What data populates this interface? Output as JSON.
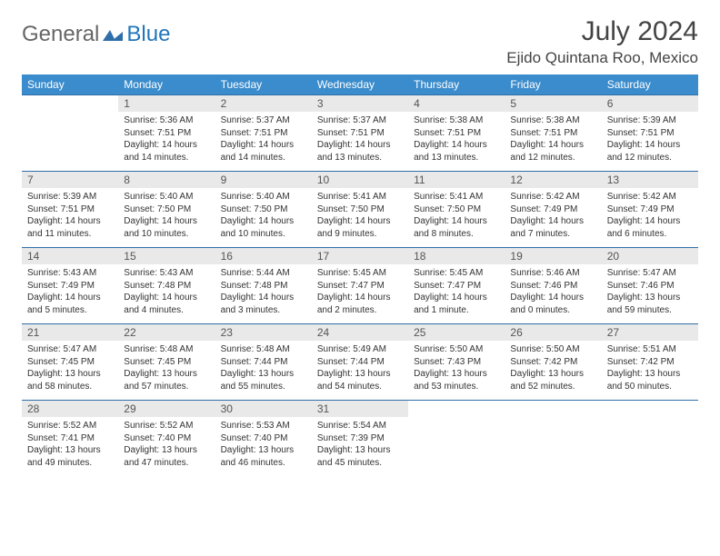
{
  "brand": {
    "part1": "General",
    "part2": "Blue"
  },
  "title": "July 2024",
  "location": "Ejido Quintana Roo, Mexico",
  "colors": {
    "header_bg": "#3b8ccc",
    "header_text": "#ffffff",
    "daynum_bg": "#e9e9e9",
    "rule": "#2f6fa8",
    "text": "#333333"
  },
  "weekdays": [
    "Sunday",
    "Monday",
    "Tuesday",
    "Wednesday",
    "Thursday",
    "Friday",
    "Saturday"
  ],
  "weeks": [
    [
      null,
      {
        "n": "1",
        "sr": "Sunrise: 5:36 AM",
        "ss": "Sunset: 7:51 PM",
        "dl": "Daylight: 14 hours and 14 minutes."
      },
      {
        "n": "2",
        "sr": "Sunrise: 5:37 AM",
        "ss": "Sunset: 7:51 PM",
        "dl": "Daylight: 14 hours and 14 minutes."
      },
      {
        "n": "3",
        "sr": "Sunrise: 5:37 AM",
        "ss": "Sunset: 7:51 PM",
        "dl": "Daylight: 14 hours and 13 minutes."
      },
      {
        "n": "4",
        "sr": "Sunrise: 5:38 AM",
        "ss": "Sunset: 7:51 PM",
        "dl": "Daylight: 14 hours and 13 minutes."
      },
      {
        "n": "5",
        "sr": "Sunrise: 5:38 AM",
        "ss": "Sunset: 7:51 PM",
        "dl": "Daylight: 14 hours and 12 minutes."
      },
      {
        "n": "6",
        "sr": "Sunrise: 5:39 AM",
        "ss": "Sunset: 7:51 PM",
        "dl": "Daylight: 14 hours and 12 minutes."
      }
    ],
    [
      {
        "n": "7",
        "sr": "Sunrise: 5:39 AM",
        "ss": "Sunset: 7:51 PM",
        "dl": "Daylight: 14 hours and 11 minutes."
      },
      {
        "n": "8",
        "sr": "Sunrise: 5:40 AM",
        "ss": "Sunset: 7:50 PM",
        "dl": "Daylight: 14 hours and 10 minutes."
      },
      {
        "n": "9",
        "sr": "Sunrise: 5:40 AM",
        "ss": "Sunset: 7:50 PM",
        "dl": "Daylight: 14 hours and 10 minutes."
      },
      {
        "n": "10",
        "sr": "Sunrise: 5:41 AM",
        "ss": "Sunset: 7:50 PM",
        "dl": "Daylight: 14 hours and 9 minutes."
      },
      {
        "n": "11",
        "sr": "Sunrise: 5:41 AM",
        "ss": "Sunset: 7:50 PM",
        "dl": "Daylight: 14 hours and 8 minutes."
      },
      {
        "n": "12",
        "sr": "Sunrise: 5:42 AM",
        "ss": "Sunset: 7:49 PM",
        "dl": "Daylight: 14 hours and 7 minutes."
      },
      {
        "n": "13",
        "sr": "Sunrise: 5:42 AM",
        "ss": "Sunset: 7:49 PM",
        "dl": "Daylight: 14 hours and 6 minutes."
      }
    ],
    [
      {
        "n": "14",
        "sr": "Sunrise: 5:43 AM",
        "ss": "Sunset: 7:49 PM",
        "dl": "Daylight: 14 hours and 5 minutes."
      },
      {
        "n": "15",
        "sr": "Sunrise: 5:43 AM",
        "ss": "Sunset: 7:48 PM",
        "dl": "Daylight: 14 hours and 4 minutes."
      },
      {
        "n": "16",
        "sr": "Sunrise: 5:44 AM",
        "ss": "Sunset: 7:48 PM",
        "dl": "Daylight: 14 hours and 3 minutes."
      },
      {
        "n": "17",
        "sr": "Sunrise: 5:45 AM",
        "ss": "Sunset: 7:47 PM",
        "dl": "Daylight: 14 hours and 2 minutes."
      },
      {
        "n": "18",
        "sr": "Sunrise: 5:45 AM",
        "ss": "Sunset: 7:47 PM",
        "dl": "Daylight: 14 hours and 1 minute."
      },
      {
        "n": "19",
        "sr": "Sunrise: 5:46 AM",
        "ss": "Sunset: 7:46 PM",
        "dl": "Daylight: 14 hours and 0 minutes."
      },
      {
        "n": "20",
        "sr": "Sunrise: 5:47 AM",
        "ss": "Sunset: 7:46 PM",
        "dl": "Daylight: 13 hours and 59 minutes."
      }
    ],
    [
      {
        "n": "21",
        "sr": "Sunrise: 5:47 AM",
        "ss": "Sunset: 7:45 PM",
        "dl": "Daylight: 13 hours and 58 minutes."
      },
      {
        "n": "22",
        "sr": "Sunrise: 5:48 AM",
        "ss": "Sunset: 7:45 PM",
        "dl": "Daylight: 13 hours and 57 minutes."
      },
      {
        "n": "23",
        "sr": "Sunrise: 5:48 AM",
        "ss": "Sunset: 7:44 PM",
        "dl": "Daylight: 13 hours and 55 minutes."
      },
      {
        "n": "24",
        "sr": "Sunrise: 5:49 AM",
        "ss": "Sunset: 7:44 PM",
        "dl": "Daylight: 13 hours and 54 minutes."
      },
      {
        "n": "25",
        "sr": "Sunrise: 5:50 AM",
        "ss": "Sunset: 7:43 PM",
        "dl": "Daylight: 13 hours and 53 minutes."
      },
      {
        "n": "26",
        "sr": "Sunrise: 5:50 AM",
        "ss": "Sunset: 7:42 PM",
        "dl": "Daylight: 13 hours and 52 minutes."
      },
      {
        "n": "27",
        "sr": "Sunrise: 5:51 AM",
        "ss": "Sunset: 7:42 PM",
        "dl": "Daylight: 13 hours and 50 minutes."
      }
    ],
    [
      {
        "n": "28",
        "sr": "Sunrise: 5:52 AM",
        "ss": "Sunset: 7:41 PM",
        "dl": "Daylight: 13 hours and 49 minutes."
      },
      {
        "n": "29",
        "sr": "Sunrise: 5:52 AM",
        "ss": "Sunset: 7:40 PM",
        "dl": "Daylight: 13 hours and 47 minutes."
      },
      {
        "n": "30",
        "sr": "Sunrise: 5:53 AM",
        "ss": "Sunset: 7:40 PM",
        "dl": "Daylight: 13 hours and 46 minutes."
      },
      {
        "n": "31",
        "sr": "Sunrise: 5:54 AM",
        "ss": "Sunset: 7:39 PM",
        "dl": "Daylight: 13 hours and 45 minutes."
      },
      null,
      null,
      null
    ]
  ]
}
